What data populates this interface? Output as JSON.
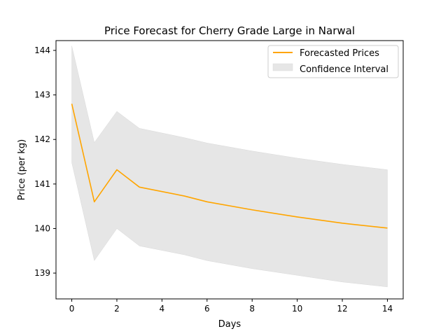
{
  "chart_data": {
    "type": "line",
    "title": "Price Forecast for Cherry Grade Large in Narwal",
    "xlabel": "Days",
    "ylabel": "Price (per kg)",
    "xlim": [
      -0.7,
      14.7
    ],
    "ylim": [
      138.42,
      144.22
    ],
    "xticks": [
      0,
      2,
      4,
      6,
      8,
      10,
      12,
      14
    ],
    "yticks": [
      139,
      140,
      141,
      142,
      143,
      144
    ],
    "grid": false,
    "legend_position": "upper right",
    "colors": {
      "line": "#ffa500",
      "band": "#e6e6e6",
      "band_edge": "#d9d9d9"
    },
    "series": [
      {
        "name": "Forecasted Prices",
        "x": [
          0,
          1,
          2,
          3,
          5,
          6,
          8,
          10,
          12,
          14
        ],
        "y": [
          142.8,
          140.6,
          141.32,
          140.93,
          140.73,
          140.6,
          140.42,
          140.26,
          140.12,
          140.01
        ]
      }
    ],
    "band": {
      "name": "Confidence Interval",
      "x": [
        0,
        1,
        2,
        3,
        5,
        6,
        8,
        10,
        12,
        14
      ],
      "lower": [
        141.48,
        139.28,
        140.0,
        139.61,
        139.41,
        139.28,
        139.1,
        138.95,
        138.8,
        138.69
      ],
      "upper": [
        144.1,
        141.93,
        142.63,
        142.25,
        142.04,
        141.92,
        141.74,
        141.58,
        141.44,
        141.32
      ]
    }
  }
}
